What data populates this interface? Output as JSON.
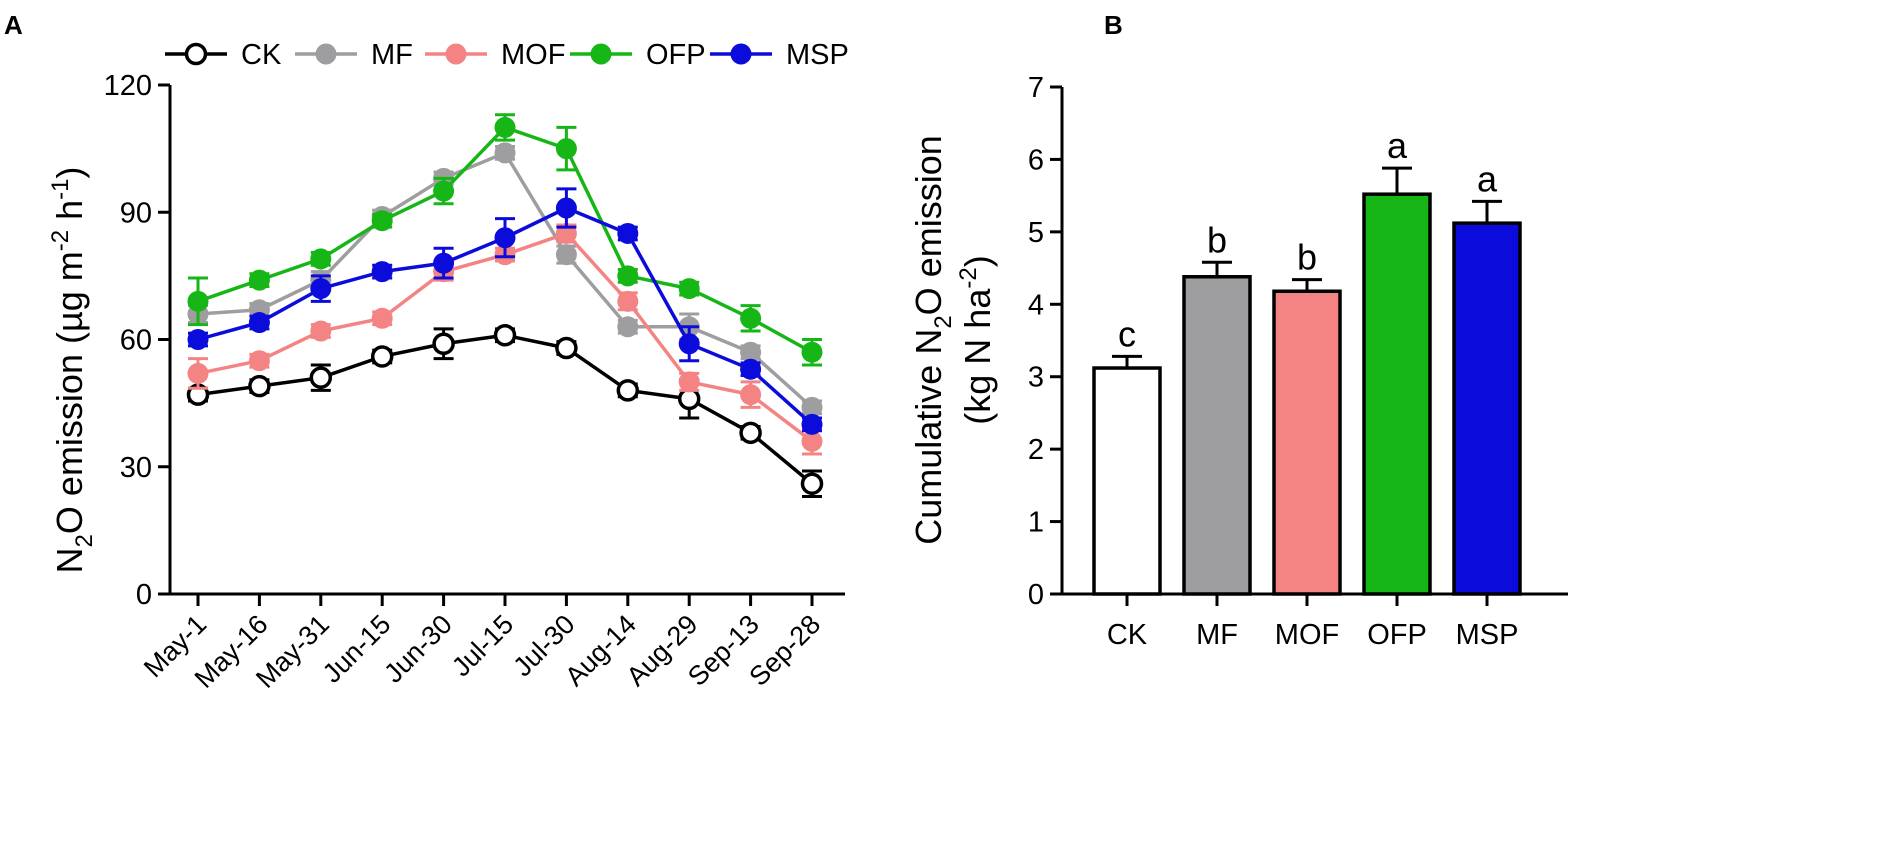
{
  "chart_data": [
    {
      "panel": "A",
      "type": "line",
      "ylabel": {
        "main": "N",
        "sub1": "2",
        "mid": "O emission (µg m",
        "sup1": "-2",
        "mid2": " h",
        "sup2": "-1",
        "end": ")"
      },
      "ylim": [
        0,
        120
      ],
      "yticks": [
        0,
        30,
        60,
        90,
        120
      ],
      "categories": [
        "May-1",
        "May-16",
        "May-31",
        "Jun-15",
        "Jun-30",
        "Jul-15",
        "Jul-30",
        "Aug-14",
        "Aug-29",
        "Sep-13",
        "Sep-28"
      ],
      "legend_position": "top",
      "series": [
        {
          "name": "CK",
          "color": "#000000",
          "hollow": true,
          "values": [
            47,
            49,
            51,
            56,
            59,
            61,
            58,
            48,
            46,
            38,
            26
          ],
          "errors": [
            1.5,
            1.5,
            3,
            1.5,
            3.5,
            1.5,
            1.5,
            1.5,
            4.5,
            1.5,
            3
          ]
        },
        {
          "name": "MF",
          "color": "#9e9ea0",
          "hollow": false,
          "values": [
            66,
            67,
            74,
            89,
            98,
            104,
            80,
            63,
            63,
            57,
            44
          ],
          "errors": [
            2,
            1.5,
            2,
            1.5,
            1.5,
            1.5,
            2,
            1.5,
            3,
            1.5,
            1.5
          ]
        },
        {
          "name": "MOF",
          "color": "#f48484",
          "hollow": false,
          "values": [
            52,
            55,
            62,
            65,
            76,
            80,
            85,
            69,
            50,
            47,
            36
          ],
          "errors": [
            3.5,
            1.5,
            1.5,
            1.5,
            2,
            1.5,
            2,
            2,
            2,
            3,
            3
          ]
        },
        {
          "name": "OFP",
          "color": "#17b617",
          "hollow": false,
          "values": [
            69,
            74,
            79,
            88,
            95,
            110,
            105,
            75,
            72,
            65,
            57
          ],
          "errors": [
            5.5,
            1.5,
            1.5,
            1.5,
            3,
            3,
            5,
            1.5,
            1.5,
            3,
            3
          ]
        },
        {
          "name": "MSP",
          "color": "#0b0bdb",
          "hollow": false,
          "values": [
            60,
            64,
            72,
            76,
            78,
            84,
            91,
            85,
            59,
            53,
            40
          ],
          "errors": [
            1.5,
            1.5,
            3,
            1.5,
            3.5,
            4.5,
            4.5,
            1.5,
            4,
            1.5,
            1.5
          ]
        }
      ]
    },
    {
      "panel": "B",
      "type": "bar",
      "ylabel_line1": {
        "pre": "Cumulative N",
        "sub": "2",
        "post": "O emission"
      },
      "ylabel_line2": {
        "pre": "(kg N ha",
        "sup": "-2",
        "post": ")"
      },
      "ylim": [
        0,
        7
      ],
      "yticks": [
        0,
        1,
        2,
        3,
        4,
        5,
        6,
        7
      ],
      "categories": [
        "CK",
        "MF",
        "MOF",
        "OFP",
        "MSP"
      ],
      "values": [
        3.12,
        4.38,
        4.18,
        5.52,
        5.12
      ],
      "errors": [
        0.16,
        0.2,
        0.16,
        0.36,
        0.3
      ],
      "significance": [
        "c",
        "b",
        "b",
        "a",
        "a"
      ],
      "colors": [
        "#ffffff",
        "#9e9ea0",
        "#f48484",
        "#17b617",
        "#0b0bdb"
      ]
    }
  ]
}
